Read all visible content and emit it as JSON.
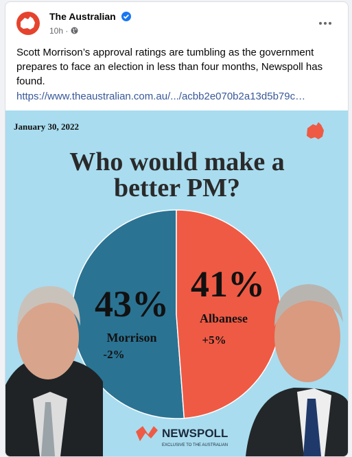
{
  "post": {
    "author": "The Australian",
    "time": "10h",
    "text": "Scott Morrison’s approval ratings are  tumbling as the government prepares to face an election in less than four months, Newspoll has found.",
    "link": "https://www.theaustralian.com.au/.../acbb2e070b2a13d5b79c…"
  },
  "chart_data": {
    "type": "pie",
    "date": "January 30, 2022",
    "title": "Who would make a better PM?",
    "categories": [
      "Morrison",
      "Albanese"
    ],
    "values": [
      43,
      41
    ],
    "value_labels": [
      "43%",
      "41%"
    ],
    "changes": [
      {
        "value": -2,
        "label": "-2%"
      },
      {
        "value": 5,
        "label": "+5%"
      }
    ],
    "colors": [
      "#2b7393",
      "#ef5a44"
    ],
    "brand": "NEWSPOLL",
    "brand_tagline": "EXCLUSIVE TO THE AUSTRALIAN"
  }
}
